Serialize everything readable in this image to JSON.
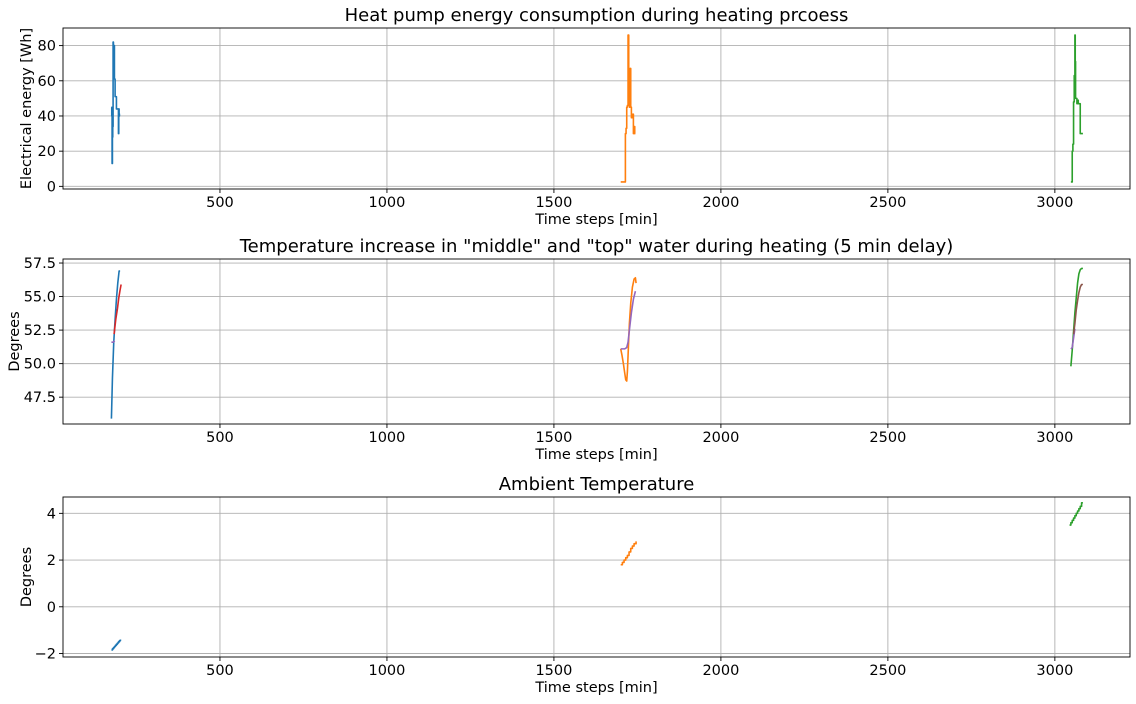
{
  "chart_data": [
    {
      "type": "line",
      "title": "Heat pump energy consumption during heating prcoess",
      "xlabel": "Time steps [min]",
      "ylabel": "Electrical energy [Wh]",
      "xlim": [
        30,
        3225
      ],
      "ylim": [
        -1.5,
        90
      ],
      "xticks": [
        500,
        1000,
        1500,
        2000,
        2500,
        3000
      ],
      "yticks": [
        0,
        20,
        40,
        60,
        80
      ],
      "grid": true,
      "series": [
        {
          "color": "#1f77b4",
          "step": true,
          "x": [
            175,
            176,
            177,
            178,
            179,
            180,
            181,
            182,
            183,
            184,
            185,
            186,
            188,
            189,
            190,
            192,
            193,
            196,
            197,
            198,
            199,
            201
          ],
          "y": [
            45,
            40,
            13,
            28,
            34,
            82,
            80,
            62,
            80,
            61,
            61,
            51,
            51,
            51,
            44,
            44,
            44,
            30,
            44,
            40,
            41,
            41
          ]
        },
        {
          "color": "#ff7f0e",
          "step": true,
          "x": [
            1700,
            1704,
            1708,
            1713,
            1714,
            1716,
            1718,
            1720,
            1722,
            1724,
            1726,
            1728,
            1730,
            1732,
            1734,
            1736,
            1738,
            1740,
            1742,
            1744
          ],
          "y": [
            2.5,
            2.5,
            2.5,
            2.5,
            30,
            33,
            45,
            46,
            86,
            66,
            45,
            67,
            45,
            39,
            39,
            41,
            30,
            34,
            30,
            30
          ]
        },
        {
          "color": "#2ca02c",
          "step": true,
          "x": [
            3048,
            3050,
            3052,
            3054,
            3056,
            3058,
            3060,
            3061,
            3062,
            3064,
            3066,
            3068,
            3070,
            3072,
            3074,
            3076,
            3078,
            3080,
            3084
          ],
          "y": [
            2.5,
            2.5,
            20,
            24,
            48,
            63,
            86,
            71,
            50,
            50,
            47,
            49,
            47,
            47,
            47,
            30,
            30,
            30,
            30
          ]
        }
      ]
    },
    {
      "type": "line",
      "title": "Temperature increase in \"middle\" and \"top\" water during heating (5 min delay)",
      "xlabel": "Time steps [min]",
      "ylabel": "Degrees",
      "xlim": [
        30,
        3225
      ],
      "ylim": [
        45.5,
        57.8
      ],
      "xticks": [
        500,
        1000,
        1500,
        2000,
        2500,
        3000
      ],
      "yticks": [
        47.5,
        50.0,
        52.5,
        55.0,
        57.5
      ],
      "grid": true,
      "series": [
        {
          "color": "#1f77b4",
          "x": [
            175,
            178,
            182,
            186,
            190,
            194,
            198,
            201
          ],
          "y": [
            45.9,
            48.9,
            51.6,
            53.3,
            54.8,
            56.0,
            56.9,
            56.9
          ]
        },
        {
          "color": "#9467bd",
          "x": [
            175,
            180,
            185
          ],
          "y": [
            51.6,
            51.6,
            51.7
          ]
        },
        {
          "color": "#d62728",
          "x": [
            183,
            188,
            193,
            197,
            201,
            204
          ],
          "y": [
            52.2,
            53.3,
            54.1,
            54.9,
            55.5,
            55.9
          ]
        },
        {
          "color": "#ff7f0e",
          "x": [
            1700,
            1704,
            1708,
            1712,
            1715,
            1718,
            1720,
            1723,
            1726,
            1730,
            1735,
            1740,
            1744,
            1746
          ],
          "y": [
            51.1,
            50.6,
            50.0,
            49.3,
            48.8,
            48.7,
            49.4,
            51.2,
            53.0,
            54.5,
            55.7,
            56.3,
            56.4,
            56.0
          ]
        },
        {
          "color": "#9467bd",
          "x": [
            1700,
            1712,
            1718,
            1722,
            1726,
            1732,
            1738,
            1744
          ],
          "y": [
            51.1,
            51.1,
            51.2,
            51.6,
            52.5,
            53.8,
            54.8,
            55.4
          ]
        },
        {
          "color": "#2ca02c",
          "x": [
            3048,
            3052,
            3056,
            3060,
            3064,
            3068,
            3072,
            3076,
            3080,
            3084
          ],
          "y": [
            49.8,
            51.0,
            52.4,
            53.8,
            54.9,
            56.0,
            56.7,
            57.0,
            57.1,
            57.1
          ]
        },
        {
          "color": "#9467bd",
          "x": [
            3048,
            3052,
            3056,
            3060
          ],
          "y": [
            51.1,
            51.2,
            51.9,
            52.6
          ]
        },
        {
          "color": "#8c564b",
          "x": [
            3056,
            3060,
            3064,
            3068,
            3072,
            3076,
            3080,
            3084
          ],
          "y": [
            52.2,
            53.0,
            54.0,
            54.7,
            55.3,
            55.7,
            55.9,
            55.9
          ]
        }
      ]
    },
    {
      "type": "line",
      "title": "Ambient Temperature",
      "xlabel": "Time steps [min]",
      "ylabel": "Degrees",
      "xlim": [
        30,
        3225
      ],
      "ylim": [
        -2.15,
        4.7
      ],
      "xticks": [
        500,
        1000,
        1500,
        2000,
        2500,
        3000
      ],
      "yticks": [
        -2,
        0,
        2,
        4
      ],
      "grid": true,
      "series": [
        {
          "color": "#1f77b4",
          "step": true,
          "x": [
            175,
            178,
            181,
            184,
            187,
            190,
            193,
            196,
            199,
            202
          ],
          "y": [
            -1.85,
            -1.8,
            -1.75,
            -1.7,
            -1.65,
            -1.6,
            -1.55,
            -1.5,
            -1.45,
            -1.4
          ]
        },
        {
          "color": "#ff7f0e",
          "step": true,
          "x": [
            1700,
            1705,
            1710,
            1715,
            1720,
            1725,
            1730,
            1735,
            1740,
            1746
          ],
          "y": [
            1.8,
            1.9,
            2.0,
            2.1,
            2.2,
            2.35,
            2.5,
            2.6,
            2.7,
            2.8
          ]
        },
        {
          "color": "#2ca02c",
          "step": true,
          "x": [
            3044,
            3048,
            3052,
            3056,
            3060,
            3064,
            3068,
            3072,
            3076,
            3080,
            3084
          ],
          "y": [
            3.5,
            3.6,
            3.7,
            3.8,
            3.9,
            4.0,
            4.1,
            4.2,
            4.3,
            4.45,
            4.45
          ]
        }
      ]
    }
  ]
}
